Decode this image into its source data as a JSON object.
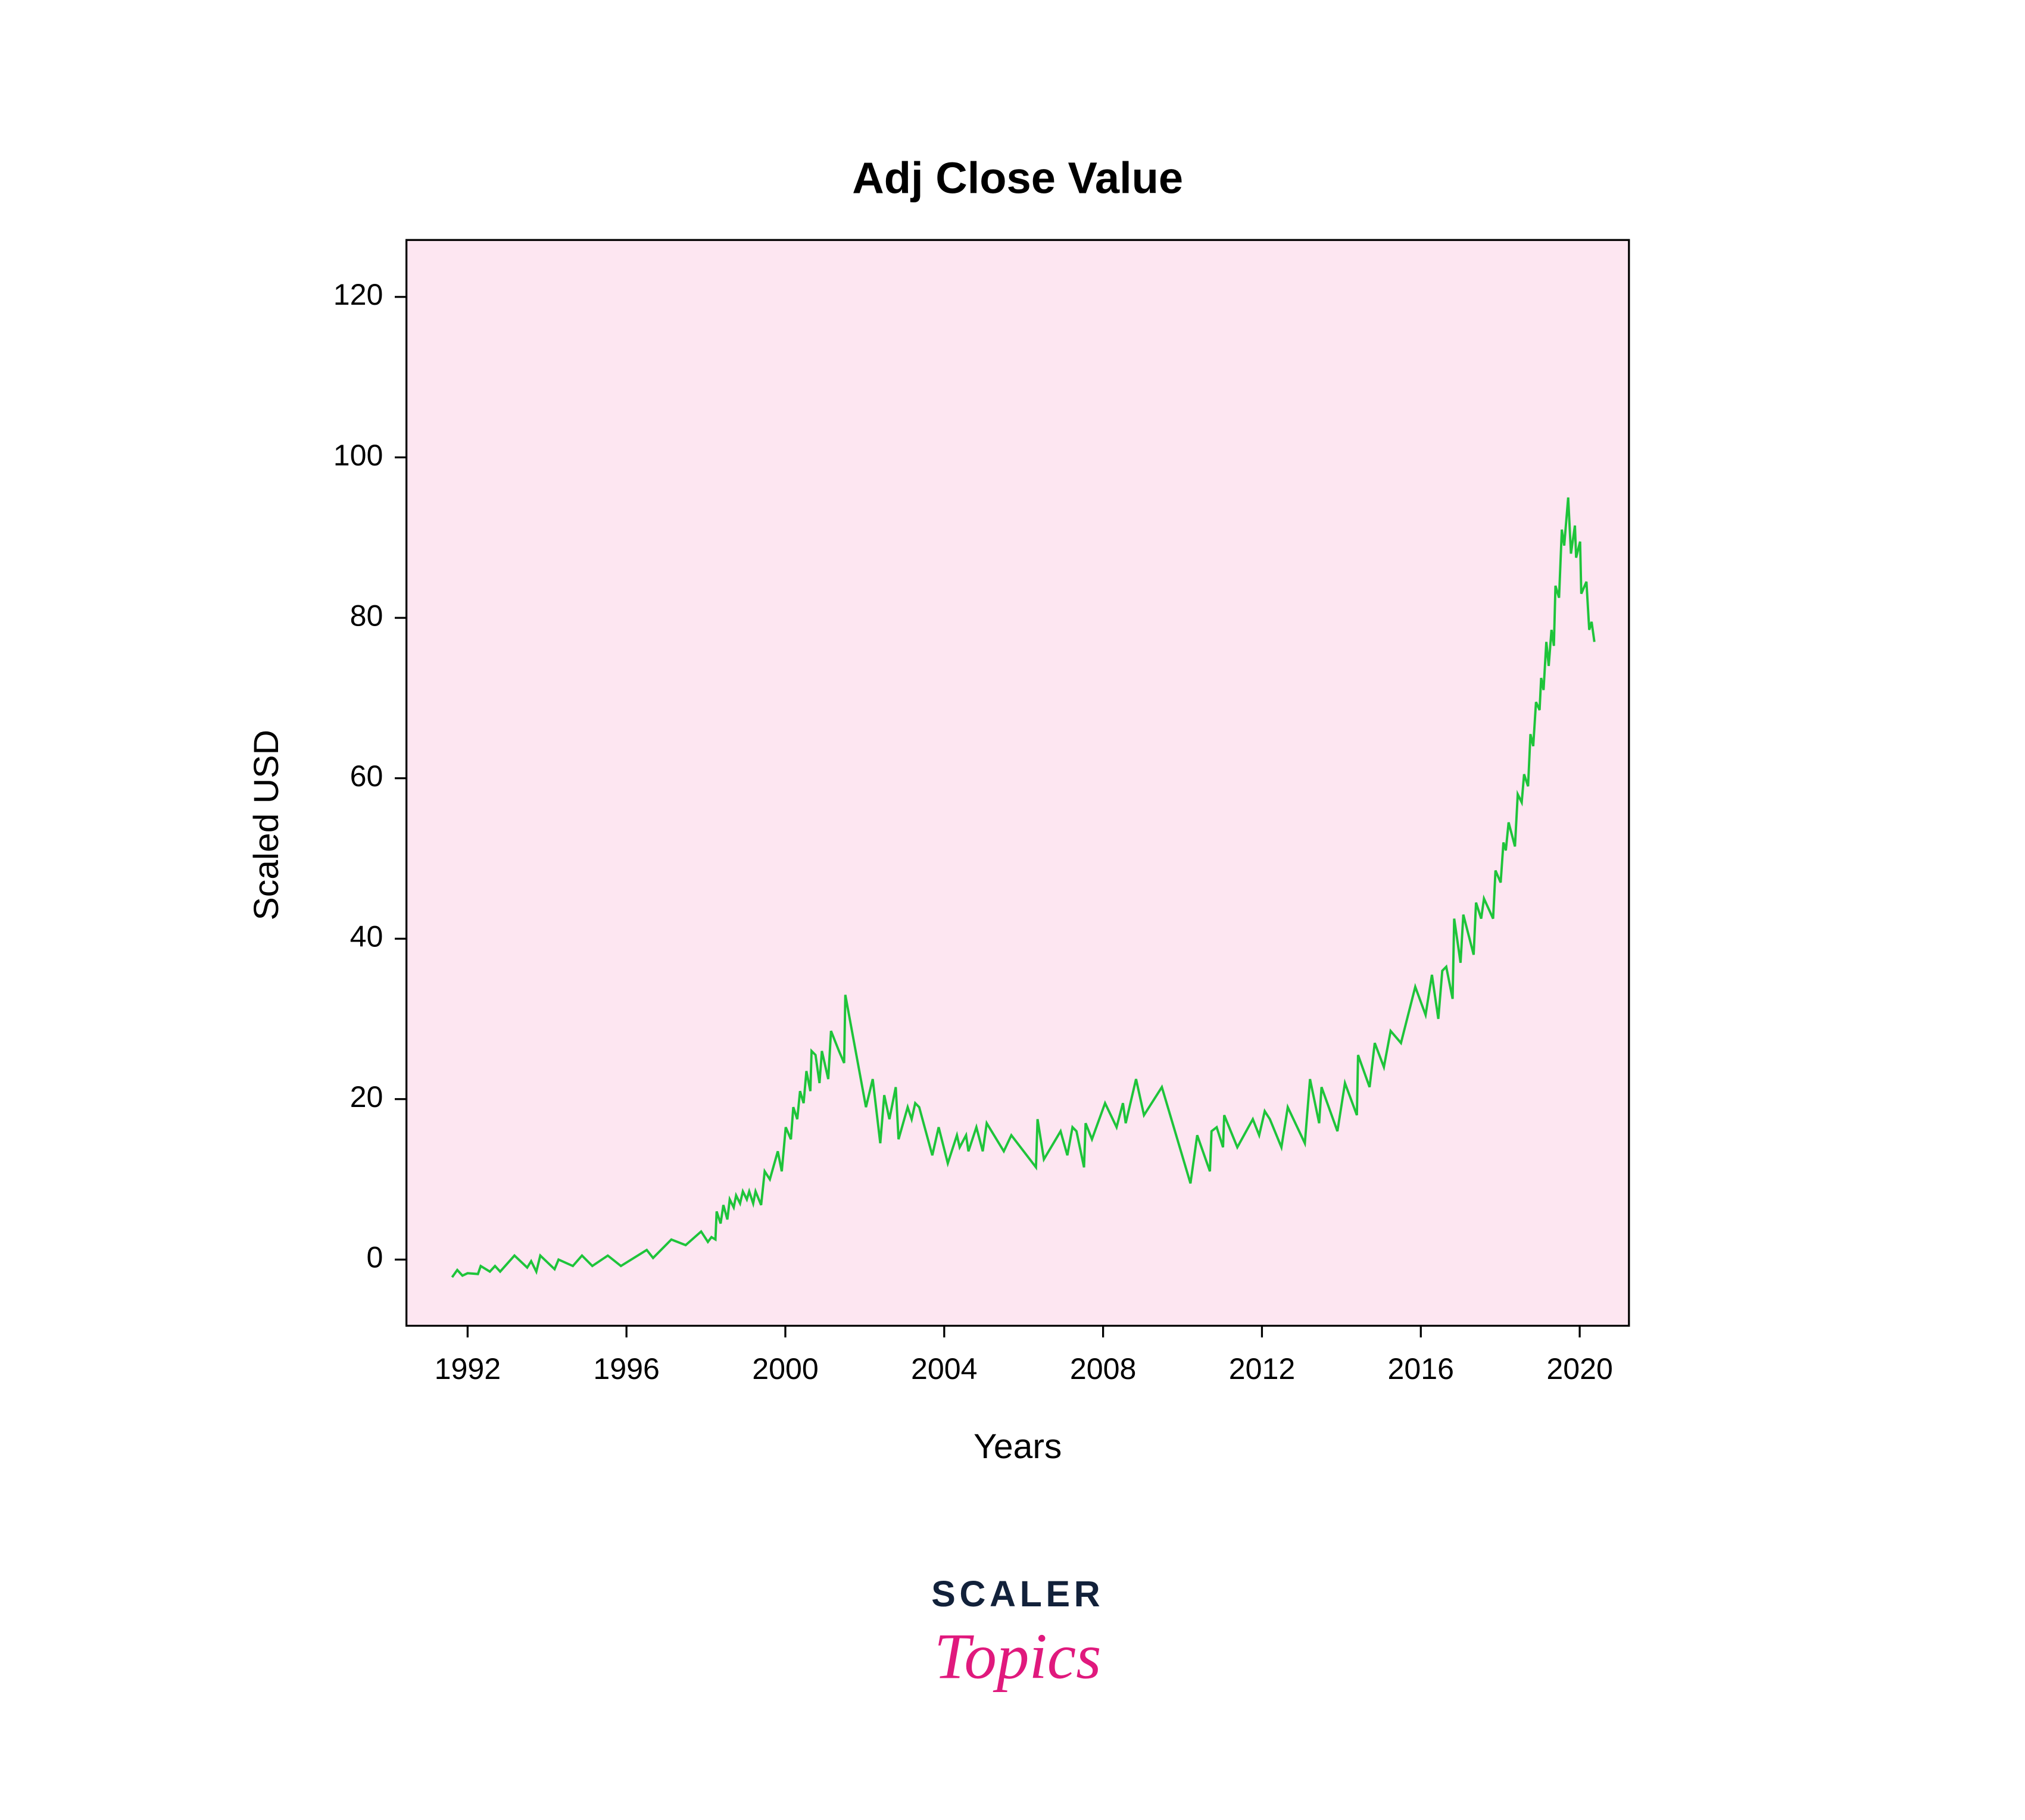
{
  "chart_data": {
    "type": "line",
    "title": "Adj Close Value",
    "xlabel": "Years",
    "ylabel": "Scaled USD",
    "xlim": [
      1990.46,
      2021.24
    ],
    "ylim": [
      -8.25,
      127.1
    ],
    "xticks": [
      1992,
      1996,
      2000,
      2004,
      2008,
      2012,
      2016,
      2020
    ],
    "yticks": [
      0,
      20,
      40,
      60,
      80,
      100,
      120
    ],
    "grid": false,
    "background": "#fde6f1",
    "x": [
      1991.61,
      1991.74,
      1991.87,
      1992.0,
      1992.26,
      1992.33,
      1992.56,
      1992.69,
      1992.82,
      1993.18,
      1993.5,
      1993.6,
      1993.73,
      1993.83,
      1994.19,
      1994.29,
      1994.65,
      1994.88,
      1995.14,
      1995.53,
      1995.86,
      1996.51,
      1996.67,
      1997.13,
      1997.49,
      1997.88,
      1998.05,
      1998.14,
      1998.24,
      1998.27,
      1998.37,
      1998.44,
      1998.54,
      1998.6,
      1998.7,
      1998.76,
      1998.86,
      1998.93,
      1999.03,
      1999.09,
      1999.19,
      1999.25,
      1999.39,
      1999.48,
      1999.61,
      1999.81,
      1999.91,
      2000.01,
      2000.14,
      2000.2,
      2000.3,
      2000.37,
      2000.46,
      2000.53,
      2000.63,
      2000.66,
      2000.76,
      2000.86,
      2000.92,
      2001.08,
      2001.15,
      2001.35,
      2001.48,
      2001.51,
      2002.03,
      2002.2,
      2002.39,
      2002.49,
      2002.62,
      2002.78,
      2002.85,
      2003.08,
      2003.18,
      2003.27,
      2003.37,
      2003.7,
      2003.86,
      2004.09,
      2004.32,
      2004.39,
      2004.55,
      2004.61,
      2004.81,
      2004.97,
      2005.07,
      2005.5,
      2005.69,
      2006.31,
      2006.35,
      2006.51,
      2006.93,
      2007.1,
      2007.23,
      2007.33,
      2007.52,
      2007.56,
      2007.72,
      2008.05,
      2008.34,
      2008.5,
      2008.57,
      2008.83,
      2009.03,
      2009.48,
      2010.2,
      2010.37,
      2010.69,
      2010.73,
      2010.86,
      2011.02,
      2011.05,
      2011.38,
      2011.77,
      2011.93,
      2012.07,
      2012.2,
      2012.49,
      2012.65,
      2013.08,
      2013.21,
      2013.44,
      2013.5,
      2013.9,
      2014.09,
      2014.39,
      2014.42,
      2014.71,
      2014.84,
      2015.07,
      2015.24,
      2015.5,
      2015.86,
      2016.12,
      2016.28,
      2016.44,
      2016.54,
      2016.64,
      2016.8,
      2016.84,
      2017.0,
      2017.07,
      2017.33,
      2017.39,
      2017.52,
      2017.59,
      2017.82,
      2017.88,
      2018.01,
      2018.08,
      2018.14,
      2018.21,
      2018.37,
      2018.44,
      2018.54,
      2018.6,
      2018.7,
      2018.76,
      2018.83,
      2018.9,
      2018.99,
      2019.03,
      2019.09,
      2019.16,
      2019.22,
      2019.29,
      2019.35,
      2019.39,
      2019.48,
      2019.55,
      2019.61,
      2019.71,
      2019.78,
      2019.88,
      2019.91,
      2020.01,
      2020.04,
      2020.17,
      2020.24,
      2020.3,
      2020.37
    ],
    "series": [
      {
        "name": "Adj Close",
        "color": "#1ec43a",
        "values": [
          -2.2,
          -1.3,
          -2.0,
          -1.7,
          -1.8,
          -0.8,
          -1.5,
          -0.8,
          -1.5,
          0.5,
          -1.0,
          -0.2,
          -1.5,
          0.5,
          -1.2,
          0,
          -0.8,
          0.5,
          -0.8,
          0.5,
          -0.8,
          1.2,
          0.2,
          2.5,
          1.8,
          3.5,
          2.2,
          2.8,
          2.5,
          6.0,
          4.5,
          6.8,
          5.0,
          7.5,
          6.5,
          8.0,
          7.0,
          8.5,
          7.5,
          8.5,
          7.0,
          8.5,
          6.8,
          11.0,
          10.0,
          13.5,
          11.0,
          16.5,
          15.0,
          19.0,
          17.5,
          21.0,
          19.5,
          23.5,
          21.0,
          26.0,
          25.5,
          22.0,
          26.0,
          22.5,
          28.5,
          26.0,
          24.5,
          33.0,
          19.0,
          22.5,
          14.5,
          20.5,
          17.5,
          21.5,
          15.0,
          19.0,
          17.5,
          19.5,
          19.0,
          13.0,
          16.5,
          12.0,
          15.5,
          14.0,
          15.5,
          13.5,
          16.5,
          13.5,
          17.0,
          13.5,
          15.5,
          11.5,
          17.5,
          12.5,
          16.0,
          13.0,
          16.5,
          16.0,
          11.5,
          17.0,
          15.0,
          19.5,
          16.5,
          19.5,
          17.0,
          22.5,
          18.0,
          21.5,
          9.5,
          15.5,
          11.0,
          16.0,
          16.5,
          14.0,
          18.0,
          14.0,
          17.5,
          15.5,
          18.5,
          17.5,
          14.0,
          19.0,
          14.5,
          22.5,
          17.0,
          21.5,
          16.0,
          22.0,
          18.0,
          25.5,
          21.5,
          27.0,
          24.0,
          28.5,
          27.0,
          34.0,
          30.5,
          35.5,
          30.0,
          36.0,
          36.5,
          32.5,
          42.5,
          37.0,
          43.0,
          38.0,
          44.5,
          42.5,
          45.0,
          42.5,
          48.5,
          47.0,
          52.0,
          51.0,
          54.5,
          51.5,
          58.0,
          57.0,
          60.5,
          59.0,
          65.5,
          64.0,
          69.5,
          68.5,
          72.5,
          71.0,
          77.0,
          74.0,
          78.5,
          76.5,
          84.0,
          82.5,
          91.0,
          89.0,
          95.0,
          88.0,
          91.5,
          87.5,
          89.5,
          83.0,
          84.5,
          78.5,
          79.5,
          77.0
        ]
      }
    ]
  },
  "brand": {
    "top": "SCALER",
    "bottom": "Topics"
  }
}
